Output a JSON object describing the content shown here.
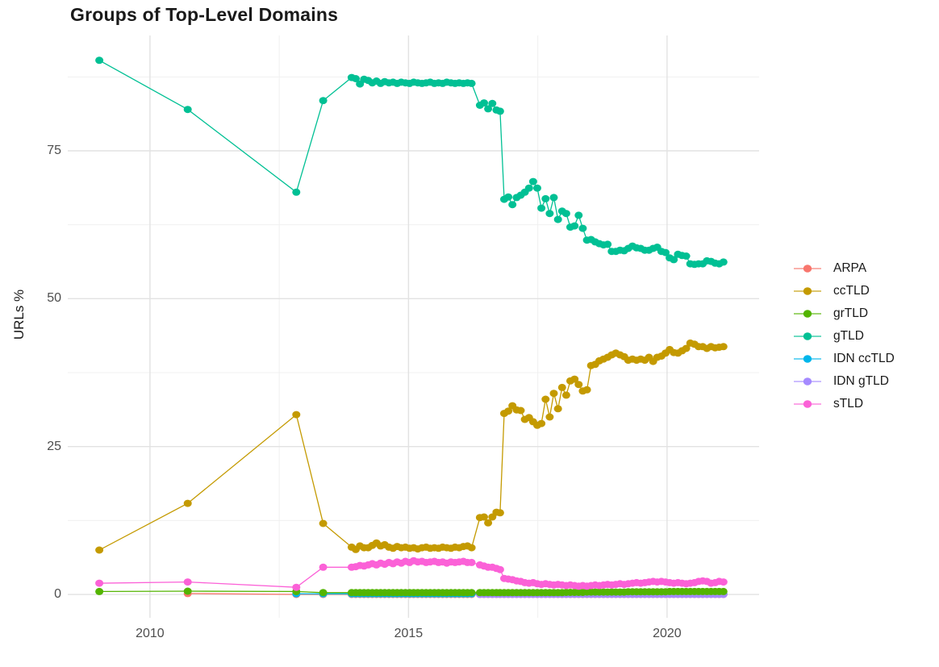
{
  "title": "Groups of Top-Level Domains",
  "axes": {
    "y_label": "URLs %",
    "y_ticks": [
      "0",
      "25",
      "50",
      "75"
    ],
    "x_ticks": [
      "2010",
      "2015",
      "2020"
    ]
  },
  "legend": {
    "items": [
      {
        "label": "ARPA",
        "color": "#F8766D"
      },
      {
        "label": "ccTLD",
        "color": "#C49A00"
      },
      {
        "label": "grTLD",
        "color": "#53B400"
      },
      {
        "label": "gTLD",
        "color": "#00C094"
      },
      {
        "label": "IDN ccTLD",
        "color": "#00B6EB"
      },
      {
        "label": "IDN gTLD",
        "color": "#A58AFF"
      },
      {
        "label": "sTLD",
        "color": "#FB61D7"
      }
    ]
  },
  "colors": {
    "grid_major": "#e2e2e2",
    "grid_minor": "#f0f0f0",
    "tick_text": "#4d4d4d",
    "text": "#1a1a1a"
  },
  "chart_data": {
    "type": "line",
    "title": "Groups of Top-Level Domains",
    "xlabel": "",
    "ylabel": "URLs %",
    "grid": true,
    "legend_position": "right",
    "x_range": [
      2008.41,
      2021.78
    ],
    "y_range": [
      -3.95,
      94.5
    ],
    "x_major_ticks": [
      2010,
      2015,
      2020
    ],
    "x_minor_gridlines": [
      2012.5,
      2017.5
    ],
    "y_major_ticks": [
      0,
      25,
      50,
      75
    ],
    "y_minor_gridlines": [
      12.5,
      37.5,
      62.5,
      87.5
    ],
    "draw_order": [
      "ARPA",
      "IDN ccTLD",
      "IDN gTLD",
      "grTLD",
      "ccTLD",
      "gTLD",
      "sTLD"
    ],
    "x": [
      2009.02,
      2010.73,
      2012.83,
      2013.35,
      2013.9,
      2013.98,
      2014.06,
      2014.14,
      2014.22,
      2014.3,
      2014.38,
      2014.46,
      2014.54,
      2014.62,
      2014.7,
      2014.78,
      2014.86,
      2014.94,
      2015.02,
      2015.1,
      2015.18,
      2015.26,
      2015.34,
      2015.42,
      2015.5,
      2015.58,
      2015.66,
      2015.74,
      2015.82,
      2015.9,
      2015.98,
      2016.06,
      2016.14,
      2016.22,
      2016.38,
      2016.46,
      2016.54,
      2016.62,
      2016.7,
      2016.77,
      2016.85,
      2016.93,
      2017.01,
      2017.09,
      2017.17,
      2017.25,
      2017.33,
      2017.41,
      2017.49,
      2017.57,
      2017.65,
      2017.73,
      2017.81,
      2017.89,
      2017.97,
      2018.05,
      2018.13,
      2018.21,
      2018.29,
      2018.37,
      2018.45,
      2018.53,
      2018.61,
      2018.69,
      2018.77,
      2018.85,
      2018.93,
      2019.01,
      2019.09,
      2019.17,
      2019.25,
      2019.33,
      2019.41,
      2019.49,
      2019.57,
      2019.65,
      2019.73,
      2019.81,
      2019.89,
      2019.97,
      2020.05,
      2020.13,
      2020.21,
      2020.29,
      2020.37,
      2020.45,
      2020.53,
      2020.61,
      2020.69,
      2020.77,
      2020.85,
      2020.93,
      2021.01,
      2021.09
    ],
    "series": [
      {
        "name": "ARPA",
        "color": "#F8766D",
        "values": [
          null,
          0.15,
          0,
          0,
          0,
          0,
          0,
          0,
          0,
          0,
          0,
          0,
          0,
          0,
          0,
          0,
          0,
          0,
          0,
          0,
          0,
          0,
          0,
          0,
          0,
          0,
          0,
          0,
          0,
          0,
          0,
          0,
          0,
          0,
          0,
          0,
          0,
          0,
          0,
          0,
          0,
          0,
          0,
          0,
          0,
          0,
          0,
          0,
          0,
          0,
          0,
          0,
          0,
          0,
          0,
          0,
          0,
          0,
          0,
          0,
          0,
          0,
          0,
          0,
          0,
          0,
          0,
          0,
          0,
          0,
          0,
          0,
          0,
          0,
          0,
          0,
          0,
          0,
          0,
          0,
          0,
          0,
          0,
          0,
          0,
          0,
          0,
          0,
          0,
          0,
          0,
          0,
          0,
          0
        ]
      },
      {
        "name": "ccTLD",
        "color": "#C49A00",
        "values": [
          7.5,
          15.4,
          30.4,
          12.0,
          8.0,
          7.6,
          8.2,
          7.9,
          7.9,
          8.3,
          8.7,
          8.2,
          8.4,
          8.0,
          7.8,
          8.1,
          7.9,
          8.0,
          7.8,
          7.9,
          7.7,
          7.9,
          8.0,
          7.8,
          7.9,
          7.8,
          8.0,
          7.9,
          7.8,
          8.0,
          7.9,
          8.1,
          8.2,
          7.9,
          13.0,
          13.1,
          12.1,
          13.1,
          13.9,
          13.8,
          30.6,
          31.0,
          31.9,
          31.2,
          31.1,
          29.6,
          29.9,
          29.2,
          28.6,
          28.9,
          33.0,
          30.0,
          34.0,
          31.4,
          35.0,
          33.7,
          36.1,
          36.4,
          35.5,
          34.4,
          34.6,
          38.7,
          38.9,
          39.5,
          39.8,
          40.1,
          40.5,
          40.8,
          40.5,
          40.2,
          39.6,
          39.8,
          39.6,
          39.8,
          39.6,
          40.1,
          39.4,
          40.1,
          40.3,
          40.8,
          41.4,
          40.9,
          40.8,
          41.2,
          41.6,
          42.5,
          42.3,
          41.9,
          41.9,
          41.6,
          41.9,
          41.7,
          41.8,
          41.9
        ]
      },
      {
        "name": "grTLD",
        "color": "#53B400",
        "values": [
          0.5,
          0.55,
          0.5,
          0.3,
          0.3,
          0.3,
          0.3,
          0.3,
          0.3,
          0.3,
          0.3,
          0.3,
          0.3,
          0.3,
          0.3,
          0.3,
          0.3,
          0.3,
          0.3,
          0.3,
          0.3,
          0.3,
          0.3,
          0.3,
          0.3,
          0.3,
          0.3,
          0.3,
          0.3,
          0.3,
          0.3,
          0.3,
          0.3,
          0.3,
          0.3,
          0.3,
          0.3,
          0.3,
          0.3,
          0.3,
          0.3,
          0.3,
          0.3,
          0.3,
          0.3,
          0.3,
          0.3,
          0.3,
          0.3,
          0.3,
          0.3,
          0.3,
          0.3,
          0.3,
          0.3,
          0.35,
          0.35,
          0.35,
          0.35,
          0.35,
          0.4,
          0.4,
          0.4,
          0.4,
          0.4,
          0.4,
          0.4,
          0.4,
          0.4,
          0.4,
          0.45,
          0.45,
          0.45,
          0.45,
          0.45,
          0.45,
          0.45,
          0.45,
          0.45,
          0.45,
          0.5,
          0.5,
          0.5,
          0.5,
          0.5,
          0.5,
          0.5,
          0.5,
          0.5,
          0.5,
          0.5,
          0.5,
          0.5,
          0.5
        ]
      },
      {
        "name": "gTLD",
        "color": "#00C094",
        "values": [
          90.3,
          82.0,
          68.0,
          83.5,
          87.4,
          87.2,
          86.3,
          87.1,
          86.9,
          86.5,
          86.8,
          86.4,
          86.7,
          86.5,
          86.6,
          86.4,
          86.6,
          86.5,
          86.4,
          86.6,
          86.5,
          86.4,
          86.5,
          86.6,
          86.4,
          86.5,
          86.4,
          86.6,
          86.5,
          86.4,
          86.5,
          86.4,
          86.5,
          86.4,
          82.7,
          83.1,
          82.1,
          83.0,
          81.9,
          81.7,
          66.8,
          67.2,
          65.9,
          67.1,
          67.5,
          68.0,
          68.7,
          69.8,
          68.7,
          65.3,
          66.9,
          64.4,
          67.1,
          63.4,
          64.8,
          64.4,
          62.1,
          62.3,
          64.1,
          61.9,
          59.9,
          60.0,
          59.6,
          59.3,
          59.1,
          59.2,
          58.0,
          58.0,
          58.2,
          58.1,
          58.5,
          58.9,
          58.6,
          58.5,
          58.2,
          58.2,
          58.5,
          58.7,
          58.0,
          57.8,
          56.9,
          56.6,
          57.5,
          57.3,
          57.2,
          55.9,
          55.8,
          55.9,
          55.9,
          56.4,
          56.3,
          56.0,
          55.9,
          56.2
        ]
      },
      {
        "name": "IDN ccTLD",
        "color": "#00B6EB",
        "values": [
          null,
          null,
          0.12,
          0.1,
          0.1,
          0.1,
          0.1,
          0.1,
          0.1,
          0.1,
          0.1,
          0.1,
          0.1,
          0.1,
          0.1,
          0.1,
          0.1,
          0.1,
          0.1,
          0.1,
          0.1,
          0.1,
          0.1,
          0.1,
          0.1,
          0.1,
          0.1,
          0.1,
          0.1,
          0.1,
          0.1,
          0.1,
          0.1,
          0.1,
          0.1,
          0.1,
          0.1,
          0.1,
          0.1,
          0.1,
          0.1,
          0.1,
          0.1,
          0.1,
          0.1,
          0.1,
          0.1,
          0.1,
          0.1,
          0.1,
          0.1,
          0.1,
          0.1,
          0.1,
          0.1,
          0.1,
          0.1,
          0.1,
          0.1,
          0.1,
          0.1,
          0.1,
          0.1,
          0.1,
          0.1,
          0.1,
          0.1,
          0.1,
          0.1,
          0.1,
          0.1,
          0.1,
          0.1,
          0.1,
          0.1,
          0.1,
          0.1,
          0.1,
          0.1,
          0.1,
          0.1,
          0.1,
          0.1,
          0.1,
          0.1,
          0.1,
          0.1,
          0.1,
          0.1,
          0.1,
          0.1,
          0.1,
          0.1,
          0.1
        ]
      },
      {
        "name": "IDN gTLD",
        "color": "#A58AFF",
        "values": [
          null,
          null,
          null,
          null,
          null,
          null,
          null,
          null,
          null,
          null,
          null,
          null,
          null,
          null,
          null,
          null,
          null,
          null,
          null,
          null,
          null,
          null,
          null,
          null,
          null,
          null,
          null,
          null,
          null,
          null,
          null,
          null,
          null,
          null,
          0.02,
          0.02,
          0.02,
          0.02,
          0.02,
          0.02,
          0.02,
          0.02,
          0.02,
          0.02,
          0.02,
          0.02,
          0.02,
          0.02,
          0.02,
          0.02,
          0.02,
          0.02,
          0.02,
          0.02,
          0.02,
          0.02,
          0.02,
          0.02,
          0.02,
          0.02,
          0.02,
          0.02,
          0.02,
          0.02,
          0.02,
          0.02,
          0.02,
          0.02,
          0.02,
          0.02,
          0.02,
          0.02,
          0.02,
          0.02,
          0.02,
          0.02,
          0.02,
          0.02,
          0.02,
          0.02,
          0.02,
          0.02,
          0.02,
          0.02,
          0.02,
          0.02,
          0.02,
          0.02,
          0.02,
          0.02,
          0.02,
          0.02,
          0.02,
          0.02
        ]
      },
      {
        "name": "sTLD",
        "color": "#FB61D7",
        "values": [
          1.9,
          2.1,
          1.2,
          4.6,
          4.6,
          4.7,
          4.9,
          4.8,
          5.0,
          5.2,
          5.0,
          5.3,
          5.1,
          5.4,
          5.2,
          5.5,
          5.3,
          5.6,
          5.4,
          5.7,
          5.5,
          5.6,
          5.4,
          5.5,
          5.6,
          5.4,
          5.5,
          5.3,
          5.5,
          5.4,
          5.5,
          5.6,
          5.4,
          5.4,
          5.0,
          4.8,
          4.6,
          4.6,
          4.4,
          4.2,
          2.7,
          2.6,
          2.5,
          2.3,
          2.2,
          2.0,
          1.9,
          2.0,
          1.8,
          1.7,
          1.8,
          1.7,
          1.6,
          1.7,
          1.6,
          1.5,
          1.6,
          1.5,
          1.4,
          1.5,
          1.4,
          1.5,
          1.6,
          1.5,
          1.6,
          1.7,
          1.6,
          1.7,
          1.8,
          1.7,
          1.8,
          1.9,
          2.0,
          1.9,
          2.0,
          2.1,
          2.2,
          2.1,
          2.2,
          2.1,
          2.0,
          1.9,
          2.0,
          1.9,
          1.8,
          1.9,
          2.0,
          2.2,
          2.3,
          2.2,
          1.9,
          2.0,
          2.2,
          2.1
        ]
      }
    ]
  }
}
